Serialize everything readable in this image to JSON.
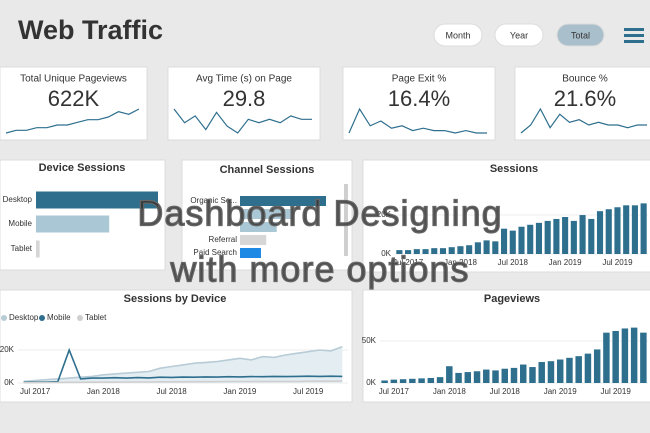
{
  "header": {
    "title": "Web Traffic",
    "buttons": [
      "Month",
      "Year",
      "Total"
    ],
    "selected": 2
  },
  "kpis": [
    {
      "title": "Total Unique Pageviews",
      "value": "622K",
      "trend": [
        3,
        4,
        4,
        5,
        5,
        6,
        6,
        7,
        8,
        8,
        9,
        11,
        10,
        12
      ]
    },
    {
      "title": "Avg Time (s) on Page",
      "value": "29.8",
      "trend": [
        10,
        6,
        8,
        4,
        9,
        5,
        3,
        7,
        6,
        7,
        6,
        8,
        7,
        7
      ]
    },
    {
      "title": "Page Exit %",
      "value": "16.4%",
      "trend": [
        2,
        12,
        5,
        7,
        4,
        5,
        3,
        4,
        3,
        3,
        2,
        3,
        2,
        2
      ]
    },
    {
      "title": "Bounce %",
      "value": "21.6%",
      "trend": [
        2,
        5,
        11,
        4,
        9,
        6,
        7,
        5,
        6,
        5,
        5,
        4,
        5,
        5
      ]
    }
  ],
  "overlay": [
    "Dashboard Designing",
    "with more options"
  ],
  "chart_data": [
    {
      "type": "hbar",
      "title": "Device Sessions",
      "categories": [
        "Desktop",
        "Mobile",
        "Tablet"
      ],
      "values": [
        100,
        60,
        3
      ],
      "colors": [
        "#2e6f8e",
        "#a9c7d4",
        "#d6d6d6"
      ]
    },
    {
      "type": "hbar",
      "title": "Channel Sessions",
      "categories": [
        "Organic Se...",
        null,
        null,
        "Referral",
        "Paid Search"
      ],
      "values": [
        82,
        50,
        35,
        25,
        20
      ],
      "colors": [
        "#2e6f8e",
        "#a9c7d4",
        "#a9c7d4",
        "#d6d6d6",
        "#1e88e5"
      ]
    },
    {
      "type": "bar",
      "title": "Sessions",
      "color": "#2e6f8e",
      "categories": [
        null,
        "Jul 2017",
        null,
        null,
        null,
        null,
        null,
        "Jan 2018",
        null,
        null,
        null,
        null,
        null,
        "Jul 2018",
        null,
        null,
        null,
        null,
        null,
        "Jan 2019",
        null,
        null,
        null,
        null,
        null,
        "Jul 2019",
        null,
        null,
        null
      ],
      "values": [
        2000,
        2000,
        2500,
        2500,
        3000,
        3000,
        3500,
        4000,
        4500,
        6000,
        7000,
        6500,
        13000,
        12000,
        14000,
        15000,
        16000,
        17000,
        18000,
        19000,
        17000,
        20000,
        18000,
        22000,
        23000,
        24000,
        25000,
        25000,
        26000
      ],
      "ylim": [
        0,
        38000
      ],
      "yticks": [
        {
          "value": 0,
          "label": "0K"
        },
        {
          "value": 20000,
          "label": "20K"
        }
      ]
    },
    {
      "type": "line",
      "title": "Sessions by Device",
      "categories": [
        null,
        "Jul 2017",
        null,
        null,
        null,
        null,
        null,
        "Jan 2018",
        null,
        null,
        null,
        null,
        null,
        "Jul 2018",
        null,
        null,
        null,
        null,
        null,
        "Jan 2019",
        null,
        null,
        null,
        null,
        null,
        "Jul 2019",
        null,
        null,
        null
      ],
      "series": [
        {
          "name": "Desktop",
          "color": "#b8ccd6",
          "values": [
            1000,
            1500,
            2000,
            2500,
            3000,
            3500,
            4000,
            5000,
            5500,
            6000,
            6500,
            7000,
            9000,
            10000,
            11000,
            12000,
            12500,
            13000,
            14000,
            15000,
            14000,
            16000,
            15500,
            17000,
            18000,
            19000,
            20000,
            19500,
            22000
          ]
        },
        {
          "name": "Mobile",
          "color": "#2e6f8e",
          "values": [
            500,
            500,
            600,
            800,
            20000,
            2500,
            3000,
            3000,
            3200,
            3000,
            3300,
            3100,
            3500,
            3400,
            3600,
            3500,
            3700,
            3600,
            3800,
            3700,
            3900,
            3800,
            4000,
            3900,
            4000,
            4100,
            4000,
            4100,
            4000
          ]
        },
        {
          "name": "Tablet",
          "color": "#cfcfcf",
          "values": [
            200,
            200,
            300,
            300,
            400,
            400,
            500,
            500,
            500,
            600,
            600,
            600,
            700,
            700,
            700,
            800,
            800,
            800,
            900,
            900,
            900,
            1000,
            1000,
            1000,
            1000,
            1100,
            1100,
            1100,
            1200
          ]
        }
      ],
      "ylim": [
        0,
        37000
      ],
      "yticks": [
        {
          "value": 0,
          "label": "0K"
        },
        {
          "value": 20000,
          "label": "20K"
        }
      ],
      "legend": "top-left"
    },
    {
      "type": "bar",
      "title": "Pageviews",
      "color": "#2e6f8e",
      "categories": [
        null,
        "Jul 2017",
        null,
        null,
        null,
        null,
        null,
        "Jan 2018",
        null,
        null,
        null,
        null,
        null,
        "Jul 2018",
        null,
        null,
        null,
        null,
        null,
        "Jan 2019",
        null,
        null,
        null,
        null,
        null,
        "Jul 2019",
        null,
        null,
        null
      ],
      "values": [
        3000,
        4000,
        4500,
        5000,
        5500,
        6000,
        7000,
        20000,
        12000,
        13000,
        14000,
        16000,
        15000,
        17000,
        18000,
        22000,
        19000,
        25000,
        26000,
        28000,
        30000,
        32000,
        35000,
        40000,
        60000,
        62000,
        65000,
        66000,
        60000
      ],
      "ylim": [
        0,
        87000
      ],
      "yticks": [
        {
          "value": 0,
          "label": "0K"
        },
        {
          "value": 50000,
          "label": "50K"
        }
      ]
    }
  ]
}
